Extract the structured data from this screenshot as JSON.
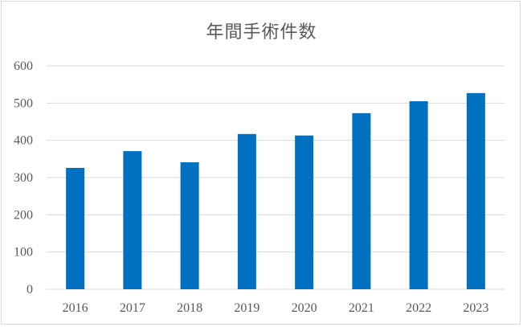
{
  "chart_data": {
    "type": "bar",
    "title": "年間手術件数",
    "categories": [
      "2016",
      "2017",
      "2018",
      "2019",
      "2020",
      "2021",
      "2022",
      "2023"
    ],
    "values": [
      326,
      371,
      341,
      417,
      413,
      473,
      505,
      527
    ],
    "ylim": [
      0,
      600
    ],
    "yticks": [
      "0",
      "100",
      "200",
      "300",
      "400",
      "500",
      "600"
    ],
    "xlabel": "",
    "ylabel": "",
    "grid": true,
    "legend": "none",
    "bar_color": "#0070C0",
    "grid_color": "#d9d9d9"
  }
}
